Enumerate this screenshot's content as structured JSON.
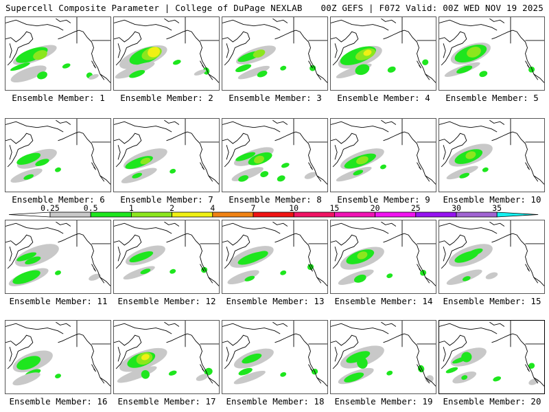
{
  "header": {
    "left_title": "Supercell Composite Parameter | College of DuPage NEXLAB",
    "right_title": "00Z GEFS | F072 Valid: 00Z WED NOV 19 2025"
  },
  "colorbar": {
    "ticks": [
      "0.25",
      "0.5",
      "1",
      "2",
      "4",
      "7",
      "10",
      "15",
      "20",
      "25",
      "30",
      "35"
    ],
    "bins": [
      {
        "from": "0.25",
        "to": "0.5",
        "color": "#c8c8c8"
      },
      {
        "from": "0.5",
        "to": "1",
        "color": "#1ee61e"
      },
      {
        "from": "1",
        "to": "2",
        "color": "#8ce61e"
      },
      {
        "from": "2",
        "to": "4",
        "color": "#f0f014"
      },
      {
        "from": "4",
        "to": "7",
        "color": "#f08214"
      },
      {
        "from": "7",
        "to": "10",
        "color": "#f01414"
      },
      {
        "from": "10",
        "to": "15",
        "color": "#f01464"
      },
      {
        "from": "15",
        "to": "20",
        "color": "#f014b4"
      },
      {
        "from": "20",
        "to": "25",
        "color": "#f014f0"
      },
      {
        "from": "25",
        "to": "30",
        "color": "#9614f0"
      },
      {
        "from": "30",
        "to": "35",
        "color": "#a064d2"
      }
    ],
    "under_color": "#ffffff",
    "over_color": "#14f0f0"
  },
  "level_colors": {
    "g": "#c8c8c8",
    "G": "#1ee61e",
    "L": "#8ce61e",
    "Y": "#f0f014"
  },
  "panels": [
    {
      "label": "Ensemble Member: 1",
      "blobs": [
        [
          "g",
          0.28,
          0.52,
          0.22,
          0.09
        ],
        [
          "G",
          0.25,
          0.52,
          0.16,
          0.08
        ],
        [
          "L",
          0.33,
          0.52,
          0.07,
          0.06
        ],
        [
          "G",
          0.14,
          0.68,
          0.1,
          0.03
        ],
        [
          "g",
          0.22,
          0.78,
          0.18,
          0.08
        ],
        [
          "G",
          0.35,
          0.8,
          0.05,
          0.05
        ],
        [
          "G",
          0.58,
          0.67,
          0.04,
          0.03
        ],
        [
          "G",
          0.8,
          0.8,
          0.03,
          0.04
        ],
        [
          "g",
          0.84,
          0.82,
          0.05,
          0.03
        ]
      ]
    },
    {
      "label": "Ensemble Member: 2",
      "blobs": [
        [
          "g",
          0.28,
          0.55,
          0.24,
          0.12
        ],
        [
          "G",
          0.3,
          0.53,
          0.16,
          0.1
        ],
        [
          "L",
          0.36,
          0.5,
          0.1,
          0.08
        ],
        [
          "Y",
          0.38,
          0.48,
          0.06,
          0.07
        ],
        [
          "g",
          0.2,
          0.73,
          0.2,
          0.06
        ],
        [
          "G",
          0.22,
          0.78,
          0.08,
          0.04
        ],
        [
          "G",
          0.6,
          0.62,
          0.04,
          0.03
        ],
        [
          "G",
          0.88,
          0.74,
          0.03,
          0.05
        ],
        [
          "g",
          0.82,
          0.76,
          0.06,
          0.03
        ]
      ]
    },
    {
      "label": "Ensemble Member: 3",
      "blobs": [
        [
          "g",
          0.32,
          0.52,
          0.2,
          0.09
        ],
        [
          "G",
          0.26,
          0.54,
          0.12,
          0.05
        ],
        [
          "L",
          0.35,
          0.5,
          0.06,
          0.05
        ],
        [
          "G",
          0.2,
          0.7,
          0.08,
          0.04
        ],
        [
          "g",
          0.3,
          0.76,
          0.16,
          0.05
        ],
        [
          "G",
          0.38,
          0.78,
          0.05,
          0.04
        ],
        [
          "G",
          0.58,
          0.7,
          0.03,
          0.03
        ],
        [
          "G",
          0.86,
          0.7,
          0.03,
          0.04
        ]
      ]
    },
    {
      "label": "Ensemble Member: 4",
      "blobs": [
        [
          "g",
          0.28,
          0.55,
          0.22,
          0.12
        ],
        [
          "G",
          0.26,
          0.53,
          0.18,
          0.1
        ],
        [
          "L",
          0.33,
          0.51,
          0.1,
          0.07
        ],
        [
          "Y",
          0.35,
          0.49,
          0.04,
          0.04
        ],
        [
          "g",
          0.22,
          0.74,
          0.18,
          0.05
        ],
        [
          "G",
          0.3,
          0.72,
          0.07,
          0.07
        ],
        [
          "G",
          0.58,
          0.72,
          0.04,
          0.04
        ],
        [
          "G",
          0.9,
          0.62,
          0.03,
          0.04
        ]
      ]
    },
    {
      "label": "Ensemble Member: 5",
      "blobs": [
        [
          "g",
          0.3,
          0.5,
          0.2,
          0.12
        ],
        [
          "G",
          0.3,
          0.5,
          0.16,
          0.1
        ],
        [
          "L",
          0.33,
          0.48,
          0.07,
          0.07
        ],
        [
          "g",
          0.22,
          0.72,
          0.18,
          0.05
        ],
        [
          "G",
          0.24,
          0.72,
          0.08,
          0.04
        ],
        [
          "G",
          0.42,
          0.78,
          0.04,
          0.04
        ],
        [
          "G",
          0.88,
          0.72,
          0.03,
          0.04
        ]
      ]
    },
    {
      "label": "Ensemble Member: 6",
      "blobs": [
        [
          "g",
          0.3,
          0.55,
          0.2,
          0.1
        ],
        [
          "G",
          0.22,
          0.55,
          0.12,
          0.06
        ],
        [
          "G",
          0.35,
          0.6,
          0.07,
          0.04
        ],
        [
          "g",
          0.2,
          0.78,
          0.16,
          0.06
        ],
        [
          "G",
          0.22,
          0.8,
          0.05,
          0.03
        ],
        [
          "G",
          0.5,
          0.7,
          0.03,
          0.03
        ]
      ]
    },
    {
      "label": "Ensemble Member: 7",
      "blobs": [
        [
          "g",
          0.3,
          0.55,
          0.22,
          0.1
        ],
        [
          "G",
          0.24,
          0.6,
          0.14,
          0.06
        ],
        [
          "L",
          0.3,
          0.58,
          0.05,
          0.04
        ],
        [
          "g",
          0.24,
          0.78,
          0.18,
          0.06
        ],
        [
          "G",
          0.22,
          0.78,
          0.05,
          0.03
        ],
        [
          "G",
          0.56,
          0.72,
          0.03,
          0.03
        ]
      ]
    },
    {
      "label": "Ensemble Member: 8",
      "blobs": [
        [
          "g",
          0.3,
          0.52,
          0.2,
          0.09
        ],
        [
          "G",
          0.22,
          0.52,
          0.1,
          0.04
        ],
        [
          "G",
          0.36,
          0.55,
          0.12,
          0.07
        ],
        [
          "L",
          0.35,
          0.56,
          0.05,
          0.05
        ],
        [
          "g",
          0.24,
          0.76,
          0.16,
          0.06
        ],
        [
          "G",
          0.2,
          0.82,
          0.05,
          0.04
        ],
        [
          "G",
          0.4,
          0.76,
          0.04,
          0.04
        ],
        [
          "G",
          0.6,
          0.64,
          0.04,
          0.03
        ],
        [
          "G",
          0.56,
          0.82,
          0.04,
          0.04
        ],
        [
          "g",
          0.84,
          0.78,
          0.06,
          0.04
        ]
      ]
    },
    {
      "label": "Ensemble Member: 9",
      "blobs": [
        [
          "g",
          0.3,
          0.55,
          0.22,
          0.1
        ],
        [
          "G",
          0.28,
          0.58,
          0.16,
          0.07
        ],
        [
          "L",
          0.3,
          0.57,
          0.06,
          0.05
        ],
        [
          "g",
          0.22,
          0.76,
          0.18,
          0.05
        ],
        [
          "G",
          0.26,
          0.74,
          0.05,
          0.03
        ],
        [
          "G",
          0.5,
          0.66,
          0.03,
          0.03
        ]
      ]
    },
    {
      "label": "Ensemble Member: 10",
      "blobs": [
        [
          "g",
          0.3,
          0.5,
          0.22,
          0.12
        ],
        [
          "G",
          0.28,
          0.52,
          0.14,
          0.08
        ],
        [
          "L",
          0.3,
          0.5,
          0.05,
          0.05
        ],
        [
          "g",
          0.22,
          0.74,
          0.16,
          0.05
        ],
        [
          "G",
          0.24,
          0.78,
          0.05,
          0.03
        ],
        [
          "G",
          0.44,
          0.7,
          0.03,
          0.03
        ]
      ]
    },
    {
      "label": "Ensemble Member: 11",
      "blobs": [
        [
          "g",
          0.3,
          0.48,
          0.22,
          0.12
        ],
        [
          "G",
          0.2,
          0.5,
          0.1,
          0.04
        ],
        [
          "G",
          0.26,
          0.55,
          0.08,
          0.04
        ],
        [
          "g",
          0.22,
          0.78,
          0.2,
          0.08
        ],
        [
          "G",
          0.2,
          0.78,
          0.14,
          0.07
        ],
        [
          "G",
          0.5,
          0.72,
          0.03,
          0.03
        ],
        [
          "g",
          0.85,
          0.78,
          0.06,
          0.04
        ]
      ]
    },
    {
      "label": "Ensemble Member: 12",
      "blobs": [
        [
          "g",
          0.3,
          0.48,
          0.2,
          0.1
        ],
        [
          "G",
          0.26,
          0.5,
          0.12,
          0.05
        ],
        [
          "g",
          0.24,
          0.72,
          0.16,
          0.05
        ],
        [
          "G",
          0.3,
          0.7,
          0.05,
          0.03
        ],
        [
          "G",
          0.56,
          0.7,
          0.03,
          0.03
        ],
        [
          "G",
          0.86,
          0.68,
          0.03,
          0.04
        ]
      ]
    },
    {
      "label": "Ensemble Member: 13",
      "blobs": [
        [
          "g",
          0.28,
          0.5,
          0.22,
          0.11
        ],
        [
          "G",
          0.28,
          0.52,
          0.14,
          0.06
        ],
        [
          "G",
          0.36,
          0.48,
          0.08,
          0.05
        ],
        [
          "g",
          0.2,
          0.78,
          0.16,
          0.06
        ],
        [
          "G",
          0.26,
          0.8,
          0.05,
          0.03
        ],
        [
          "G",
          0.58,
          0.72,
          0.03,
          0.03
        ],
        [
          "G",
          0.84,
          0.64,
          0.03,
          0.04
        ]
      ]
    },
    {
      "label": "Ensemble Member: 14",
      "blobs": [
        [
          "g",
          0.3,
          0.52,
          0.22,
          0.12
        ],
        [
          "G",
          0.28,
          0.5,
          0.14,
          0.08
        ],
        [
          "L",
          0.3,
          0.48,
          0.05,
          0.05
        ],
        [
          "g",
          0.24,
          0.78,
          0.18,
          0.06
        ],
        [
          "G",
          0.28,
          0.8,
          0.06,
          0.05
        ],
        [
          "G",
          0.56,
          0.76,
          0.03,
          0.03
        ],
        [
          "G",
          0.88,
          0.72,
          0.03,
          0.04
        ]
      ]
    },
    {
      "label": "Ensemble Member: 15",
      "blobs": [
        [
          "g",
          0.3,
          0.48,
          0.22,
          0.12
        ],
        [
          "G",
          0.26,
          0.5,
          0.12,
          0.06
        ],
        [
          "G",
          0.34,
          0.44,
          0.08,
          0.04
        ],
        [
          "g",
          0.24,
          0.78,
          0.18,
          0.06
        ],
        [
          "G",
          0.26,
          0.8,
          0.04,
          0.03
        ],
        [
          "g",
          0.5,
          0.76,
          0.06,
          0.04
        ]
      ]
    },
    {
      "label": "Ensemble Member: 16",
      "blobs": [
        [
          "g",
          0.26,
          0.56,
          0.2,
          0.12
        ],
        [
          "G",
          0.22,
          0.58,
          0.12,
          0.08
        ],
        [
          "G",
          0.26,
          0.72,
          0.08,
          0.04
        ],
        [
          "g",
          0.2,
          0.8,
          0.14,
          0.06
        ],
        [
          "G",
          0.5,
          0.76,
          0.03,
          0.03
        ]
      ]
    },
    {
      "label": "Ensemble Member: 17",
      "blobs": [
        [
          "g",
          0.28,
          0.54,
          0.24,
          0.12
        ],
        [
          "G",
          0.26,
          0.54,
          0.14,
          0.09
        ],
        [
          "L",
          0.29,
          0.52,
          0.08,
          0.08
        ],
        [
          "Y",
          0.3,
          0.5,
          0.04,
          0.04
        ],
        [
          "g",
          0.22,
          0.74,
          0.2,
          0.06
        ],
        [
          "G",
          0.3,
          0.74,
          0.04,
          0.06
        ],
        [
          "G",
          0.56,
          0.72,
          0.04,
          0.03
        ],
        [
          "G",
          0.9,
          0.7,
          0.04,
          0.05
        ],
        [
          "g",
          0.84,
          0.78,
          0.06,
          0.04
        ]
      ]
    },
    {
      "label": "Ensemble Member: 18",
      "blobs": [
        [
          "g",
          0.3,
          0.52,
          0.2,
          0.1
        ],
        [
          "G",
          0.28,
          0.52,
          0.1,
          0.05
        ],
        [
          "G",
          0.22,
          0.7,
          0.07,
          0.04
        ],
        [
          "g",
          0.26,
          0.78,
          0.16,
          0.05
        ],
        [
          "G",
          0.58,
          0.74,
          0.03,
          0.03
        ],
        [
          "G",
          0.88,
          0.7,
          0.03,
          0.04
        ]
      ]
    },
    {
      "label": "Ensemble Member: 19",
      "blobs": [
        [
          "g",
          0.3,
          0.5,
          0.22,
          0.12
        ],
        [
          "G",
          0.26,
          0.5,
          0.12,
          0.06
        ],
        [
          "G",
          0.3,
          0.58,
          0.05,
          0.08
        ],
        [
          "g",
          0.24,
          0.76,
          0.18,
          0.07
        ],
        [
          "G",
          0.22,
          0.78,
          0.1,
          0.05
        ],
        [
          "G",
          0.56,
          0.72,
          0.03,
          0.03
        ],
        [
          "G",
          0.86,
          0.66,
          0.03,
          0.05
        ],
        [
          "g",
          0.94,
          0.8,
          0.04,
          0.05
        ]
      ]
    },
    {
      "label": "Ensemble Member: 20",
      "blobs": [
        [
          "g",
          0.28,
          0.5,
          0.18,
          0.1
        ],
        [
          "G",
          0.2,
          0.54,
          0.08,
          0.03
        ],
        [
          "G",
          0.26,
          0.5,
          0.05,
          0.07
        ],
        [
          "G",
          0.12,
          0.68,
          0.06,
          0.03
        ],
        [
          "g",
          0.24,
          0.78,
          0.12,
          0.06
        ],
        [
          "G",
          0.24,
          0.78,
          0.03,
          0.03
        ],
        [
          "G",
          0.55,
          0.8,
          0.04,
          0.03
        ],
        [
          "G",
          0.88,
          0.62,
          0.03,
          0.04
        ],
        [
          "g",
          0.9,
          0.84,
          0.05,
          0.04
        ]
      ]
    }
  ]
}
